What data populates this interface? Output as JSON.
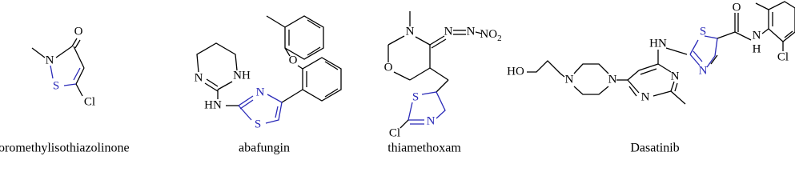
{
  "molecules": [
    {
      "name": "chloromethylisothiazolinone",
      "atoms": [
        "O",
        "N",
        "S",
        "Cl"
      ]
    },
    {
      "name": "abafungin",
      "atoms": [
        "NH",
        "N",
        "HN",
        "N",
        "S",
        "O"
      ]
    },
    {
      "name": "thiamethoxam",
      "atoms": [
        "N",
        "N",
        "N",
        {
          "text": "NO",
          "sub": "2"
        },
        "O",
        "S",
        "N",
        "Cl"
      ]
    },
    {
      "name": "Dasatinib",
      "atoms": [
        "HO",
        "N",
        "N",
        "N",
        "N",
        "HN",
        "S",
        "N",
        "O",
        "N",
        "H",
        "Cl"
      ]
    }
  ]
}
